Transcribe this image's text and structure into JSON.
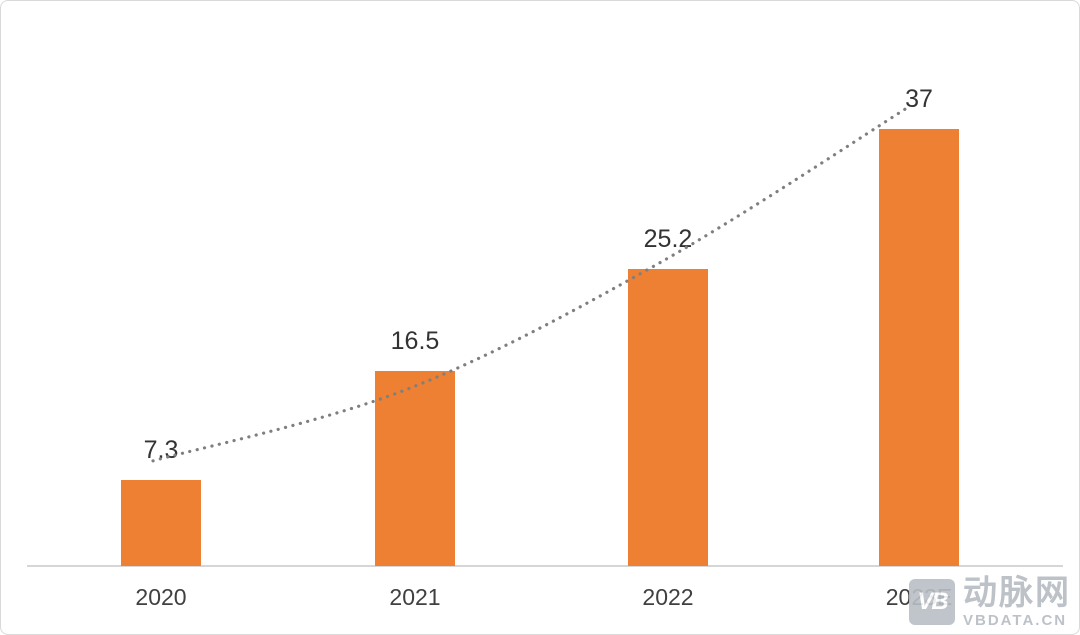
{
  "chart_data": {
    "type": "bar",
    "categories": [
      "2020",
      "2021",
      "2022",
      "2023E"
    ],
    "values": [
      7.3,
      16.5,
      25.2,
      37
    ],
    "value_labels": [
      "7.3",
      "16.5",
      "25.2",
      "37"
    ],
    "title": "",
    "xlabel": "",
    "ylabel": "",
    "ylim": [
      0,
      40
    ],
    "grid": false,
    "legend": "none",
    "bar_color": "#ED8033",
    "axis_line_color": "#D6D6D6",
    "trend_line": {
      "style": "dotted",
      "color": "#7F7F7F"
    }
  },
  "watermark": {
    "logo_text": "VB",
    "name": "动脉网",
    "url": "VBDATA.CN",
    "color": "#B6BCC3"
  }
}
